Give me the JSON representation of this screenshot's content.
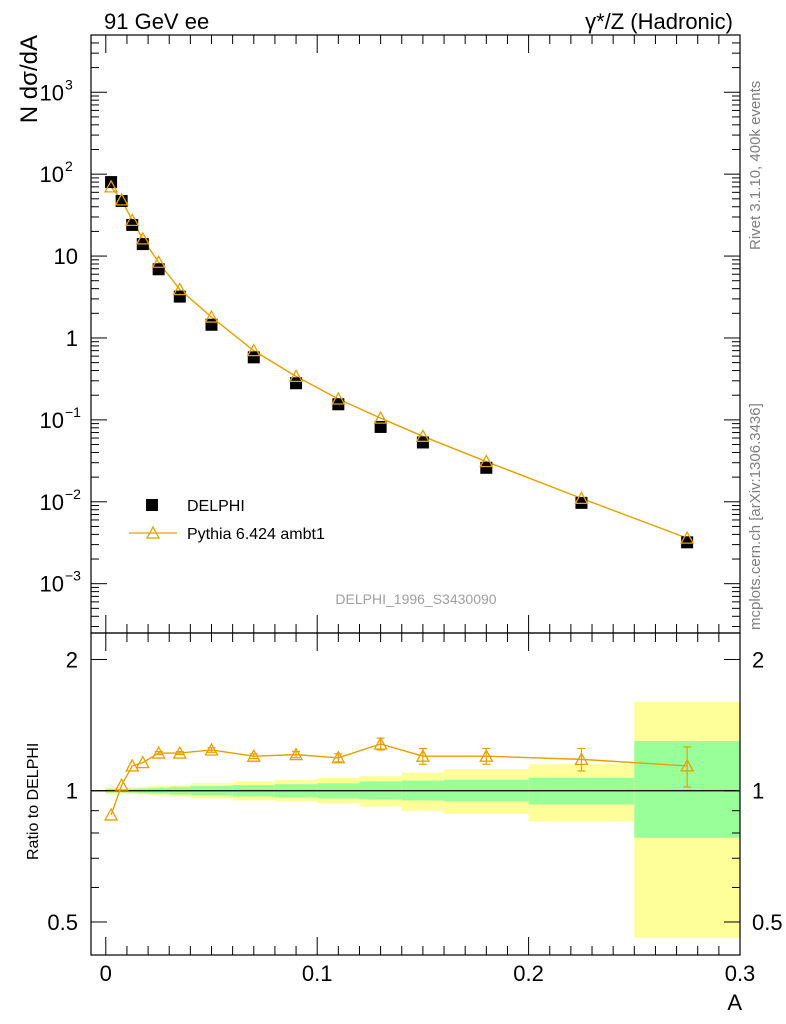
{
  "header": {
    "left": "91 GeV ee",
    "right": "γ*/Z (Hadronic)"
  },
  "side_labels": {
    "top": "Rivet 3.1.10,  400k events",
    "bottom": "mcplots.cern.ch [arXiv:1306.3436]"
  },
  "watermark": "DELPHI_1996_S3430090",
  "colors": {
    "mc": "#e8a000",
    "band_inner": "#99ff99",
    "band_outer": "#ffff99",
    "data": "#000000"
  },
  "chart_data": [
    {
      "type": "scatter",
      "ylabel": "N dσ/dA",
      "yscale": "log",
      "ylim": [
        0.00025,
        5000
      ],
      "xlim": [
        -0.007,
        0.3
      ],
      "legend_placement": "lower-left",
      "series": [
        {
          "name": "DELPHI",
          "x": [
            0.0025,
            0.0075,
            0.0125,
            0.0175,
            0.025,
            0.035,
            0.05,
            0.07,
            0.09,
            0.11,
            0.13,
            0.15,
            0.18,
            0.225,
            0.275
          ],
          "y": [
            80,
            47,
            24,
            14,
            6.9,
            3.2,
            1.45,
            0.58,
            0.28,
            0.155,
            0.082,
            0.053,
            0.026,
            0.0097,
            0.0032
          ]
        },
        {
          "name": "Pythia 6.424 ambt1",
          "x": [
            0.0025,
            0.0075,
            0.0125,
            0.0175,
            0.025,
            0.035,
            0.05,
            0.07,
            0.09,
            0.11,
            0.13,
            0.15,
            0.18,
            0.225,
            0.275
          ],
          "y": [
            70,
            48.5,
            27.3,
            16.2,
            8.4,
            3.9,
            1.8,
            0.7,
            0.34,
            0.18,
            0.105,
            0.063,
            0.031,
            0.011,
            0.0036
          ]
        }
      ]
    },
    {
      "type": "line",
      "xlabel": "A",
      "ylabel": "Ratio to DELPHI",
      "yscale": "log",
      "ylim": [
        0.42,
        2.3
      ],
      "xlim": [
        -0.007,
        0.3
      ],
      "xticks": [
        "0",
        "0.1",
        "0.2",
        "0.3"
      ],
      "yticks": [
        "0.5",
        "1",
        "2"
      ],
      "series": [
        {
          "name": "Pythia 6.424 ambt1",
          "x": [
            0.0025,
            0.0075,
            0.0125,
            0.0175,
            0.025,
            0.035,
            0.05,
            0.07,
            0.09,
            0.11,
            0.13,
            0.15,
            0.18,
            0.225,
            0.275
          ],
          "y": [
            0.88,
            1.03,
            1.14,
            1.16,
            1.22,
            1.22,
            1.24,
            1.2,
            1.21,
            1.19,
            1.28,
            1.2,
            1.2,
            1.18,
            1.14
          ],
          "yerr": [
            0.005,
            0.005,
            0.007,
            0.008,
            0.01,
            0.01,
            0.015,
            0.015,
            0.02,
            0.025,
            0.04,
            0.05,
            0.05,
            0.07,
            0.12
          ]
        }
      ],
      "bands": [
        {
          "x0": 0.0,
          "x1": 0.005,
          "inner": [
            0.99,
            1.01
          ],
          "outer": [
            0.98,
            1.02
          ]
        },
        {
          "x0": 0.005,
          "x1": 0.01,
          "inner": [
            0.99,
            1.01
          ],
          "outer": [
            0.985,
            1.02
          ]
        },
        {
          "x0": 0.01,
          "x1": 0.015,
          "inner": [
            0.99,
            1.01
          ],
          "outer": [
            0.985,
            1.02
          ]
        },
        {
          "x0": 0.015,
          "x1": 0.02,
          "inner": [
            0.988,
            1.012
          ],
          "outer": [
            0.98,
            1.02
          ]
        },
        {
          "x0": 0.02,
          "x1": 0.03,
          "inner": [
            0.985,
            1.015
          ],
          "outer": [
            0.975,
            1.025
          ]
        },
        {
          "x0": 0.03,
          "x1": 0.04,
          "inner": [
            0.98,
            1.02
          ],
          "outer": [
            0.97,
            1.03
          ]
        },
        {
          "x0": 0.04,
          "x1": 0.06,
          "inner": [
            0.975,
            1.025
          ],
          "outer": [
            0.96,
            1.04
          ]
        },
        {
          "x0": 0.06,
          "x1": 0.08,
          "inner": [
            0.97,
            1.03
          ],
          "outer": [
            0.95,
            1.05
          ]
        },
        {
          "x0": 0.08,
          "x1": 0.1,
          "inner": [
            0.965,
            1.035
          ],
          "outer": [
            0.945,
            1.06
          ]
        },
        {
          "x0": 0.1,
          "x1": 0.12,
          "inner": [
            0.96,
            1.04
          ],
          "outer": [
            0.935,
            1.07
          ]
        },
        {
          "x0": 0.12,
          "x1": 0.14,
          "inner": [
            0.955,
            1.05
          ],
          "outer": [
            0.92,
            1.08
          ]
        },
        {
          "x0": 0.14,
          "x1": 0.16,
          "inner": [
            0.95,
            1.055
          ],
          "outer": [
            0.9,
            1.1
          ]
        },
        {
          "x0": 0.16,
          "x1": 0.2,
          "inner": [
            0.945,
            1.06
          ],
          "outer": [
            0.885,
            1.12
          ]
        },
        {
          "x0": 0.2,
          "x1": 0.25,
          "inner": [
            0.93,
            1.07
          ],
          "outer": [
            0.85,
            1.15
          ]
        },
        {
          "x0": 0.25,
          "x1": 0.3,
          "inner": [
            0.78,
            1.3
          ],
          "outer": [
            0.46,
            1.6
          ]
        }
      ]
    }
  ]
}
